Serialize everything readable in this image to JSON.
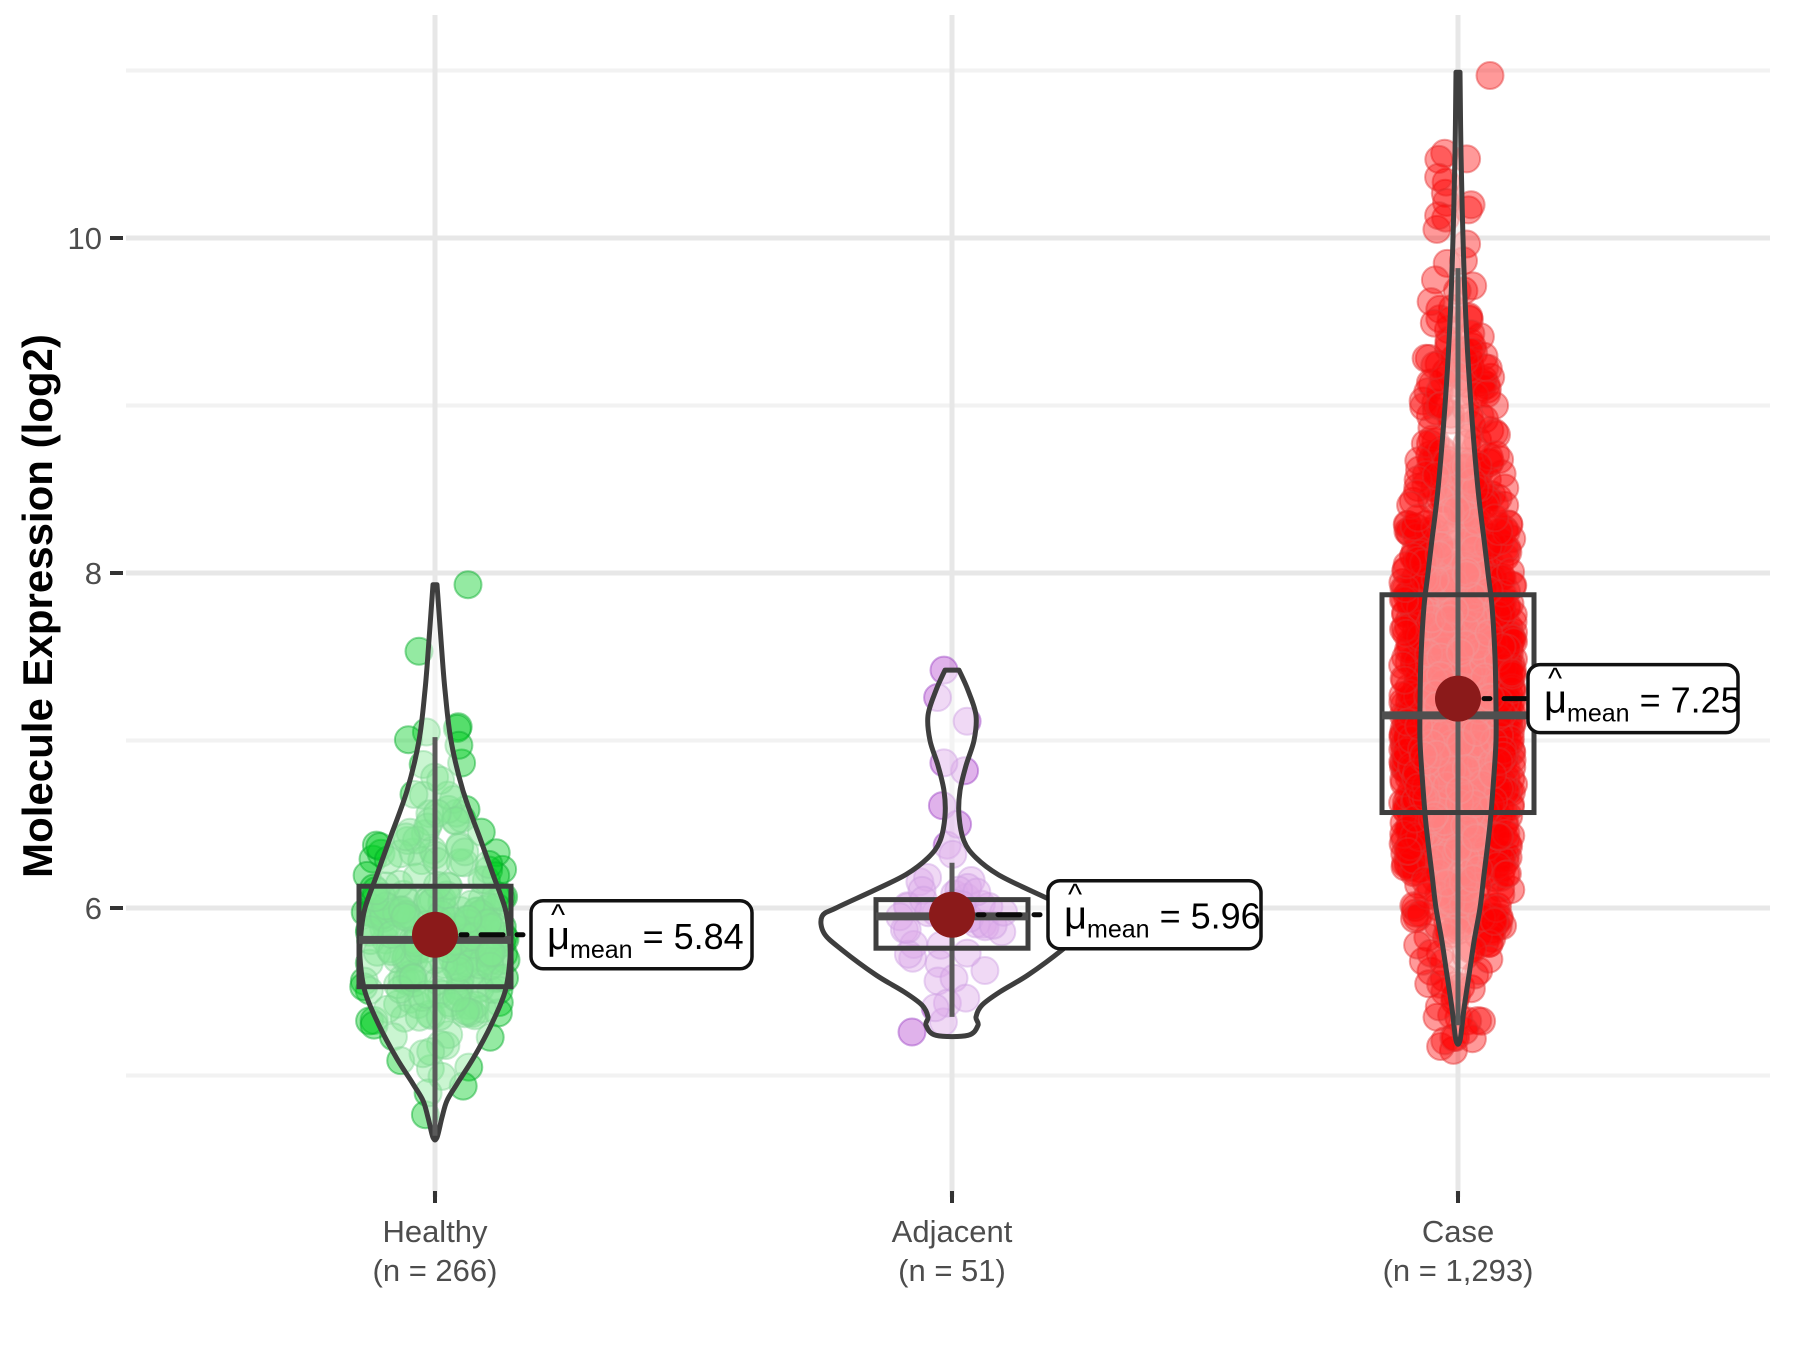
{
  "y_axis": {
    "title": "Molecule Expression (log2)",
    "major_ticks": [
      {
        "value": 10,
        "label": "10"
      },
      {
        "value": 8,
        "label": "8"
      },
      {
        "value": 6,
        "label": "6"
      }
    ],
    "minor_ticks": [
      11,
      9,
      7,
      5
    ],
    "range": [
      4.27,
      11.31
    ]
  },
  "x_axis": {
    "groups": [
      {
        "id": "healthy",
        "line1": "Healthy",
        "line2": "(n = 266)"
      },
      {
        "id": "adjacent",
        "line1": "Adjacent",
        "line2": "(n = 51)"
      },
      {
        "id": "case",
        "line1": "Case",
        "line2": "(n = 1,293)"
      }
    ]
  },
  "colors": {
    "grid_major": "#E7E7E7",
    "grid_minor": "#F2F2F2",
    "outline": "#3E3E3E",
    "median": "#4F4F4F",
    "whisker": "#5A5A5A",
    "mean_dot": "#8B1A1A",
    "tick_text": "#4d4d4d",
    "tick_mark": "#333333",
    "annotation_line": "#0a0a0a"
  },
  "chart_data": {
    "type": "violin",
    "description": "Violin + jittered points + boxplot of molecule expression (log2) by tissue group, with mean annotations",
    "ylabel": "Molecule Expression (log2)",
    "groups": [
      {
        "name": "Healthy",
        "n": 266,
        "mean_label_prefix": "μ",
        "mean_label_sub": "mean",
        "mean_label_eq": " = ",
        "mean_value": "5.84",
        "stats": {
          "mean": 5.84,
          "median": 5.81,
          "q1": 5.53,
          "q3": 6.13,
          "whisker_low": 4.64,
          "whisker_high": 7.02,
          "min": 4.63,
          "max": 7.93
        },
        "point_fill": "#00CC22",
        "point_opacity": 0.42,
        "point_stroke": "#00A825",
        "violin_profile": [
          [
            7.93,
            2
          ],
          [
            7.6,
            6
          ],
          [
            7.3,
            10
          ],
          [
            7.0,
            16
          ],
          [
            6.7,
            28
          ],
          [
            6.4,
            46
          ],
          [
            6.2,
            58
          ],
          [
            6.0,
            70
          ],
          [
            5.85,
            74
          ],
          [
            5.7,
            75
          ],
          [
            5.5,
            70
          ],
          [
            5.3,
            56
          ],
          [
            5.1,
            38
          ],
          [
            4.95,
            22
          ],
          [
            4.85,
            12
          ],
          [
            4.75,
            7
          ],
          [
            4.63,
            2
          ]
        ],
        "jitter": {
          "seed": 7,
          "n": 265,
          "clip": [
            4.63,
            7.9
          ],
          "mix": [
            {
              "w": 0.78,
              "mu": 5.82,
              "sd": 0.3
            },
            {
              "w": 0.12,
              "mu": 6.35,
              "sd": 0.28
            },
            {
              "w": 0.05,
              "mu": 6.95,
              "sd": 0.4
            },
            {
              "w": 0.05,
              "mu": 5.0,
              "sd": 0.22
            }
          ],
          "anchors": [
            [
              7.93,
              33
            ]
          ],
          "spread": {
            "scale": 1.05,
            "pad": 10,
            "cap": 72
          }
        }
      },
      {
        "name": "Adjacent",
        "n": 51,
        "mean_label_prefix": "μ",
        "mean_label_sub": "mean",
        "mean_label_eq": " = ",
        "mean_value": "5.96",
        "stats": {
          "mean": 5.96,
          "median": 5.95,
          "q1": 5.76,
          "q3": 6.05,
          "whisker_low": 5.35,
          "whisker_high": 6.27,
          "min": 5.24,
          "max": 7.42
        },
        "point_fill": "#BA55D3",
        "point_opacity": 0.45,
        "point_stroke": "#9A3FC4",
        "violin_profile": [
          [
            7.42,
            7
          ],
          [
            7.3,
            16
          ],
          [
            7.15,
            24
          ],
          [
            7.0,
            22
          ],
          [
            6.85,
            14
          ],
          [
            6.7,
            8
          ],
          [
            6.55,
            7
          ],
          [
            6.4,
            12
          ],
          [
            6.3,
            24
          ],
          [
            6.2,
            46
          ],
          [
            6.1,
            80
          ],
          [
            6.0,
            116
          ],
          [
            5.95,
            130
          ],
          [
            5.85,
            128
          ],
          [
            5.75,
            110
          ],
          [
            5.6,
            76
          ],
          [
            5.5,
            48
          ],
          [
            5.42,
            30
          ],
          [
            5.35,
            24
          ],
          [
            5.3,
            26
          ],
          [
            5.24,
            16
          ]
        ],
        "jitter": {
          "seed": 13,
          "n": 49,
          "clip": [
            5.24,
            7.42
          ],
          "mix": [
            {
              "w": 0.72,
              "mu": 5.95,
              "sd": 0.16
            },
            {
              "w": 0.12,
              "mu": 5.45,
              "sd": 0.1
            },
            {
              "w": 0.16,
              "mu": 6.95,
              "sd": 0.3,
              "lo": 6.5,
              "hi": 7.42
            }
          ],
          "anchors": [
            [
              7.42,
              -8
            ],
            [
              5.26,
              -40
            ]
          ],
          "spread": {
            "scale": 0.42,
            "pad": 10,
            "cap": 60
          }
        }
      },
      {
        "name": "Case",
        "n": 1293,
        "mean_label_prefix": "μ",
        "mean_label_sub": "mean",
        "mean_label_eq": " = ",
        "mean_value": "7.25",
        "stats": {
          "mean": 7.25,
          "median": 7.15,
          "q1": 6.57,
          "q3": 7.87,
          "whisker_low": 5.3,
          "whisker_high": 9.82,
          "min": 5.15,
          "max": 10.97
        },
        "point_fill": "#FF0000",
        "point_opacity": 0.4,
        "point_stroke": "#E23030",
        "violin_profile": [
          [
            10.99,
            2
          ],
          [
            10.5,
            3
          ],
          [
            10.0,
            5
          ],
          [
            9.5,
            8
          ],
          [
            9.0,
            13
          ],
          [
            8.5,
            20
          ],
          [
            8.2,
            26
          ],
          [
            8.0,
            30
          ],
          [
            7.8,
            34
          ],
          [
            7.5,
            37
          ],
          [
            7.2,
            38
          ],
          [
            7.0,
            38
          ],
          [
            6.8,
            36
          ],
          [
            6.5,
            32
          ],
          [
            6.2,
            26
          ],
          [
            6.0,
            22
          ],
          [
            5.8,
            16
          ],
          [
            5.6,
            11
          ],
          [
            5.4,
            6
          ],
          [
            5.21,
            2
          ]
        ],
        "jitter": {
          "seed": 5,
          "n": 1292,
          "clip": [
            5.15,
            10.6
          ],
          "mix": [
            {
              "w": 0.52,
              "mu": 7.0,
              "sd": 0.55
            },
            {
              "w": 0.3,
              "mu": 7.9,
              "sd": 0.55
            },
            {
              "w": 0.1,
              "mu": 6.2,
              "sd": 0.4
            },
            {
              "w": 0.055,
              "mu": 9.2,
              "sd": 0.35
            },
            {
              "w": 0.015,
              "mu": 10.1,
              "sd": 0.35,
              "lo": 9.75,
              "hi": 10.55
            },
            {
              "w": 0.01,
              "mu": 5.38,
              "sd": 0.14
            }
          ],
          "anchors": [
            [
              10.97,
              32
            ]
          ],
          "spread": {
            "scale": 1.45,
            "pad": 18,
            "cap": 56
          }
        }
      }
    ]
  }
}
